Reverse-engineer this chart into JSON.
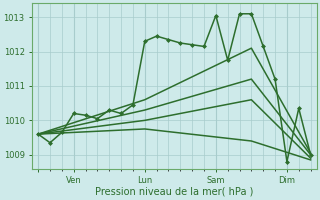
{
  "background_color": "#ceeaea",
  "grid_color": "#a8cccc",
  "line_color": "#2d6e2d",
  "xlabel": "Pression niveau de la mer( hPa )",
  "ylim": [
    1008.6,
    1013.4
  ],
  "yticks": [
    1009,
    1010,
    1011,
    1012,
    1013
  ],
  "ytick_labels": [
    "1009",
    "1010",
    "1011",
    "1012",
    "1013"
  ],
  "day_tick_positions": [
    0,
    3,
    9,
    15,
    21
  ],
  "day_tick_labels": [
    "",
    "Ven",
    "Lun",
    "Sam",
    "Dim"
  ],
  "xlim": [
    -0.5,
    23.5
  ],
  "minor_x_step": 1,
  "lines": [
    {
      "x": [
        0,
        1,
        2,
        3,
        4,
        5,
        6,
        7,
        8,
        9,
        10,
        11,
        12,
        13,
        14,
        15,
        16,
        17,
        18,
        19,
        20,
        21,
        22,
        23
      ],
      "y": [
        1009.6,
        1009.35,
        1009.65,
        1010.2,
        1010.15,
        1010.05,
        1010.3,
        1010.2,
        1010.45,
        1012.3,
        1012.45,
        1012.35,
        1012.25,
        1012.2,
        1012.15,
        1013.05,
        1011.75,
        1013.1,
        1013.1,
        1012.15,
        1011.2,
        1008.8,
        1010.35,
        1009.0
      ],
      "lw": 1.1,
      "marker": "D",
      "ms": 2.0,
      "ls": "-"
    },
    {
      "x": [
        0,
        9,
        18,
        23
      ],
      "y": [
        1009.6,
        1009.75,
        1009.4,
        1008.85
      ],
      "lw": 1.1,
      "marker": null,
      "ms": 0,
      "ls": "-"
    },
    {
      "x": [
        0,
        9,
        18,
        23
      ],
      "y": [
        1009.6,
        1010.0,
        1010.6,
        1008.9
      ],
      "lw": 1.1,
      "marker": null,
      "ms": 0,
      "ls": "-"
    },
    {
      "x": [
        0,
        9,
        18,
        23
      ],
      "y": [
        1009.6,
        1010.3,
        1011.2,
        1009.0
      ],
      "lw": 1.1,
      "marker": null,
      "ms": 0,
      "ls": "-"
    },
    {
      "x": [
        0,
        9,
        18,
        23
      ],
      "y": [
        1009.6,
        1010.6,
        1012.1,
        1009.05
      ],
      "lw": 1.1,
      "marker": null,
      "ms": 0,
      "ls": "-"
    }
  ]
}
